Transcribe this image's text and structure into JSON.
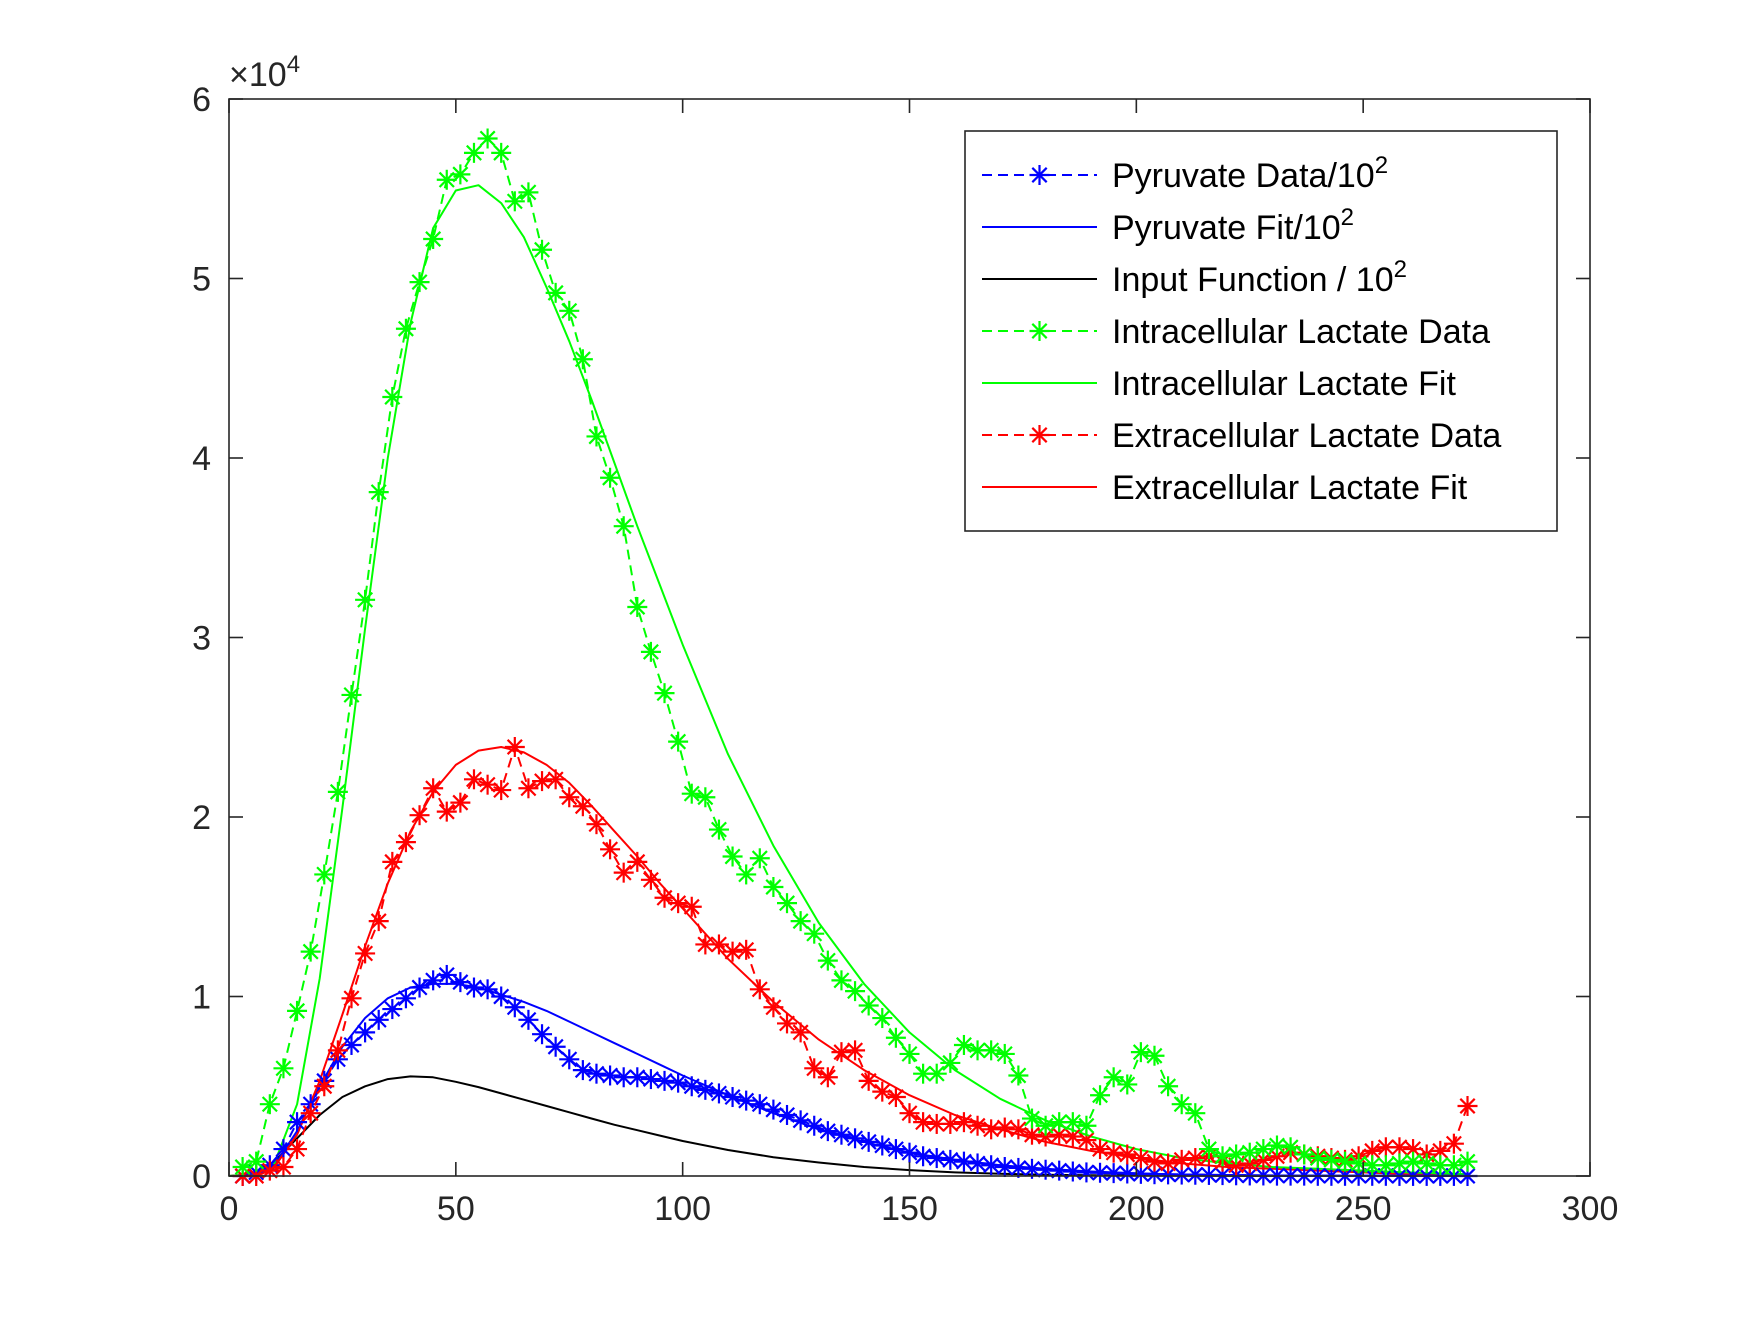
{
  "chart_data": {
    "type": "line",
    "title": "",
    "xlabel": "",
    "ylabel": "",
    "xlim": [
      0,
      300
    ],
    "ylim": [
      0,
      60000
    ],
    "x_ticks": [
      0,
      50,
      100,
      150,
      200,
      250,
      300
    ],
    "y_ticks": [
      0,
      10000,
      20000,
      30000,
      40000,
      50000,
      60000
    ],
    "x_tick_labels": [
      "0",
      "50",
      "100",
      "150",
      "200",
      "250",
      "300"
    ],
    "y_tick_labels": [
      "0",
      "1",
      "2",
      "3",
      "4",
      "5",
      "6"
    ],
    "y_multiplier": {
      "base": "×10",
      "exponent": "4"
    },
    "grid": false,
    "legend_position": "top-right",
    "series": [
      {
        "name_base": "Pyruvate Data/10",
        "name_sup": "2",
        "color": "#0000ff",
        "line": "dashed",
        "marker": "asterisk",
        "x": [
          3,
          6,
          9,
          12,
          15,
          18,
          21,
          24,
          27,
          30,
          33,
          36,
          39,
          42,
          45,
          48,
          51,
          54,
          57,
          60,
          63,
          66,
          69,
          72,
          75,
          78,
          81,
          84,
          87,
          90,
          93,
          96,
          99,
          102,
          105,
          108,
          111,
          114,
          117,
          120,
          123,
          126,
          129,
          132,
          135,
          138,
          141,
          144,
          147,
          150,
          153,
          156,
          159,
          162,
          165,
          168,
          171,
          174,
          177,
          180,
          183,
          186,
          189,
          192,
          195,
          198,
          201,
          204,
          207,
          210,
          213,
          216,
          219,
          222,
          225,
          228,
          231,
          234,
          237,
          240,
          243,
          246,
          249,
          252,
          255,
          258,
          261,
          264,
          267,
          270,
          273
        ],
        "y": [
          0,
          200,
          600,
          1500,
          3000,
          4000,
          5300,
          6500,
          7300,
          8000,
          8700,
          9300,
          9900,
          10500,
          10900,
          11200,
          10800,
          10500,
          10400,
          10000,
          9400,
          8700,
          7900,
          7200,
          6500,
          5900,
          5700,
          5600,
          5500,
          5500,
          5400,
          5300,
          5200,
          5000,
          4800,
          4600,
          4400,
          4200,
          4000,
          3700,
          3400,
          3100,
          2800,
          2500,
          2300,
          2100,
          1900,
          1700,
          1500,
          1300,
          1100,
          1000,
          900,
          800,
          700,
          600,
          500,
          450,
          400,
          350,
          300,
          250,
          200,
          180,
          160,
          140,
          120,
          100,
          90,
          80,
          70,
          60,
          50,
          40,
          30,
          30,
          20,
          20,
          20,
          10,
          10,
          10,
          10,
          10,
          10,
          5,
          5,
          5,
          5,
          5,
          0
        ]
      },
      {
        "name_base": "Pyruvate Fit/10",
        "name_sup": "2",
        "color": "#0000ff",
        "line": "solid",
        "marker": "none",
        "x": [
          0,
          5,
          10,
          15,
          20,
          25,
          30,
          35,
          40,
          45,
          50,
          55,
          60,
          65,
          70,
          75,
          80,
          85,
          90,
          95,
          100,
          110,
          120,
          130,
          140,
          150,
          160,
          170,
          180,
          190,
          200,
          210,
          220,
          230,
          240,
          250,
          260,
          273
        ],
        "y": [
          0,
          0,
          600,
          2500,
          5000,
          7200,
          8800,
          9900,
          10500,
          10700,
          10700,
          10500,
          10100,
          9700,
          9200,
          8600,
          8000,
          7400,
          6800,
          6200,
          5600,
          4500,
          3500,
          2600,
          1900,
          1300,
          900,
          600,
          400,
          250,
          150,
          80,
          50,
          30,
          15,
          10,
          5,
          0
        ]
      },
      {
        "name_base": "Input Function / 10",
        "name_sup": "2",
        "color": "#000000",
        "line": "solid",
        "marker": "none",
        "x": [
          0,
          5,
          10,
          15,
          20,
          25,
          30,
          35,
          40,
          45,
          50,
          55,
          60,
          65,
          70,
          75,
          80,
          85,
          90,
          95,
          100,
          110,
          120,
          130,
          140,
          150,
          160,
          170,
          180,
          190,
          200,
          210,
          220,
          230,
          240,
          250,
          260,
          273
        ],
        "y": [
          0,
          100,
          800,
          2100,
          3400,
          4400,
          5000,
          5400,
          5550,
          5500,
          5250,
          4950,
          4600,
          4250,
          3900,
          3550,
          3200,
          2850,
          2550,
          2250,
          1950,
          1450,
          1050,
          750,
          500,
          330,
          200,
          120,
          70,
          40,
          20,
          10,
          5,
          0,
          0,
          0,
          0,
          0
        ]
      },
      {
        "name_base": "Intracellular Lactate Data",
        "name_sup": "",
        "color": "#00ff00",
        "line": "dashed",
        "marker": "asterisk",
        "x": [
          3,
          6,
          9,
          12,
          15,
          18,
          21,
          24,
          27,
          30,
          33,
          36,
          39,
          42,
          45,
          48,
          51,
          54,
          57,
          60,
          63,
          66,
          69,
          72,
          75,
          78,
          81,
          84,
          87,
          90,
          93,
          96,
          99,
          102,
          105,
          108,
          111,
          114,
          117,
          120,
          123,
          126,
          129,
          132,
          135,
          138,
          141,
          144,
          147,
          150,
          153,
          156,
          159,
          162,
          165,
          168,
          171,
          174,
          177,
          180,
          183,
          186,
          189,
          192,
          195,
          198,
          201,
          204,
          207,
          210,
          213,
          216,
          219,
          222,
          225,
          228,
          231,
          234,
          237,
          240,
          243,
          246,
          249,
          252,
          255,
          258,
          261,
          264,
          267,
          270,
          273
        ],
        "y": [
          500,
          800,
          4000,
          6000,
          9200,
          12500,
          16800,
          21400,
          26800,
          32100,
          38100,
          43400,
          47200,
          49800,
          52200,
          55500,
          55800,
          57000,
          57800,
          57000,
          54300,
          54800,
          51600,
          49200,
          48200,
          45500,
          41200,
          38900,
          36200,
          31700,
          29200,
          26900,
          24200,
          21300,
          21100,
          19300,
          17800,
          16800,
          17700,
          16100,
          15200,
          14200,
          13500,
          12000,
          10900,
          10300,
          9500,
          8800,
          7700,
          6800,
          5700,
          5700,
          6300,
          7300,
          7000,
          7000,
          6800,
          5600,
          3200,
          2800,
          3000,
          3000,
          2800,
          4500,
          5500,
          5100,
          6900,
          6700,
          5000,
          4000,
          3500,
          1500,
          1100,
          1200,
          1300,
          1500,
          1700,
          1600,
          1200,
          1000,
          900,
          800,
          700,
          600,
          600,
          700,
          800,
          700,
          600,
          600,
          800
        ]
      },
      {
        "name_base": "Intracellular Lactate Fit",
        "name_sup": "",
        "color": "#00ff00",
        "line": "solid",
        "marker": "none",
        "x": [
          0,
          5,
          10,
          15,
          20,
          25,
          30,
          35,
          40,
          45,
          50,
          55,
          60,
          65,
          70,
          75,
          80,
          85,
          90,
          95,
          100,
          110,
          120,
          130,
          140,
          150,
          160,
          170,
          180,
          190,
          200,
          210,
          220,
          230,
          240,
          250,
          260,
          273
        ],
        "y": [
          0,
          100,
          700,
          4000,
          11000,
          20500,
          30500,
          40000,
          47500,
          52800,
          54900,
          55200,
          54200,
          52300,
          49500,
          46500,
          43200,
          39700,
          36200,
          32900,
          29600,
          23500,
          18400,
          14100,
          10700,
          8000,
          5900,
          4300,
          3100,
          2200,
          1500,
          1000,
          700,
          500,
          400,
          300,
          200,
          100
        ]
      },
      {
        "name_base": "Extracellular Lactate Data",
        "name_sup": "",
        "color": "#ff0000",
        "line": "dashed",
        "marker": "asterisk",
        "x": [
          3,
          6,
          9,
          12,
          15,
          18,
          21,
          24,
          27,
          30,
          33,
          36,
          39,
          42,
          45,
          48,
          51,
          54,
          57,
          60,
          63,
          66,
          69,
          72,
          75,
          78,
          81,
          84,
          87,
          90,
          93,
          96,
          99,
          102,
          105,
          108,
          111,
          114,
          117,
          120,
          123,
          126,
          129,
          132,
          135,
          138,
          141,
          144,
          147,
          150,
          153,
          156,
          159,
          162,
          165,
          168,
          171,
          174,
          177,
          180,
          183,
          186,
          189,
          192,
          195,
          198,
          201,
          204,
          207,
          210,
          213,
          216,
          219,
          222,
          225,
          228,
          231,
          234,
          237,
          240,
          243,
          246,
          249,
          252,
          255,
          258,
          261,
          264,
          267,
          270,
          273
        ],
        "y": [
          0,
          0,
          300,
          500,
          1500,
          3500,
          5000,
          7000,
          9900,
          12400,
          14200,
          17500,
          18600,
          20100,
          21600,
          20300,
          20800,
          22100,
          21800,
          21500,
          23900,
          21600,
          22000,
          22100,
          21100,
          20600,
          19600,
          18200,
          16900,
          17500,
          16500,
          15500,
          15200,
          15000,
          12900,
          12900,
          12500,
          12600,
          10400,
          9400,
          8500,
          8000,
          6000,
          5500,
          6900,
          7000,
          5300,
          4700,
          4400,
          3500,
          3000,
          2900,
          2900,
          3000,
          2800,
          2600,
          2700,
          2600,
          2300,
          2200,
          2300,
          2200,
          2000,
          1500,
          1300,
          1200,
          1000,
          800,
          700,
          900,
          1000,
          1100,
          800,
          600,
          700,
          900,
          1100,
          1300,
          1200,
          1100,
          1000,
          900,
          1100,
          1400,
          1600,
          1600,
          1500,
          1200,
          1400,
          1800,
          3900
        ]
      },
      {
        "name_base": "Extracellular Lactate Fit",
        "name_sup": "",
        "color": "#ff0000",
        "line": "solid",
        "marker": "none",
        "x": [
          0,
          5,
          10,
          15,
          20,
          25,
          30,
          35,
          40,
          45,
          50,
          55,
          60,
          65,
          70,
          75,
          80,
          85,
          90,
          95,
          100,
          110,
          120,
          130,
          140,
          150,
          160,
          170,
          180,
          190,
          200,
          210,
          220,
          230,
          240,
          250,
          260,
          273
        ],
        "y": [
          0,
          50,
          500,
          2300,
          5300,
          9000,
          12800,
          16300,
          19200,
          21400,
          22900,
          23700,
          23900,
          23600,
          22900,
          21900,
          20600,
          19200,
          17800,
          16300,
          14900,
          12100,
          9700,
          7600,
          5900,
          4500,
          3400,
          2600,
          1900,
          1400,
          1000,
          700,
          500,
          400,
          300,
          200,
          100,
          100
        ]
      }
    ]
  }
}
